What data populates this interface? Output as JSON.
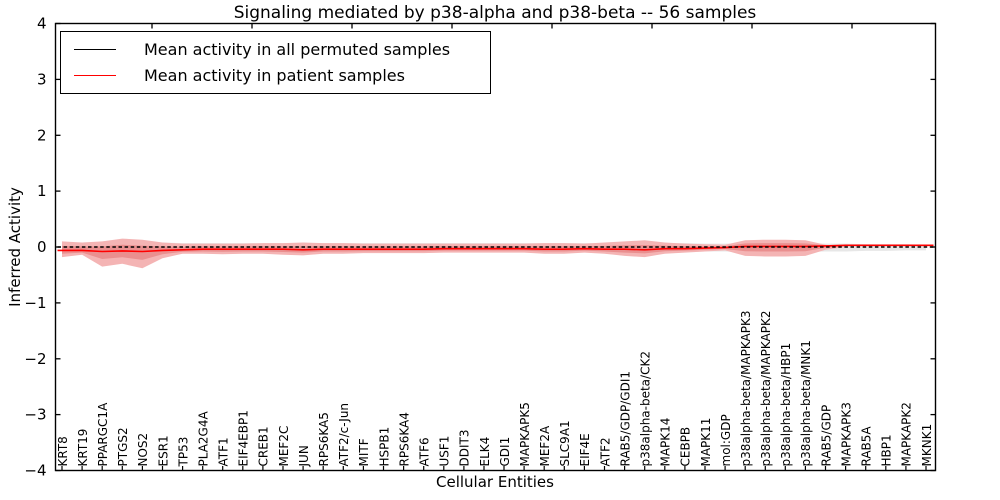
{
  "figure": {
    "background": "#ffffff"
  },
  "legend": {
    "entries": [
      {
        "label": "Mean activity in all permuted samples",
        "color": "#000000"
      },
      {
        "label": "Mean activity in patient samples",
        "color": "#ff0000"
      }
    ]
  },
  "colors": {
    "patient_line": "#ff0000",
    "permuted_line": "#000000",
    "patient_band_outer": "#f4b4b4",
    "patient_band_inner": "#ea8f8f",
    "permuted_band": "#e7e7e7",
    "axis": "#000000"
  },
  "chart_data": {
    "type": "area",
    "title": "Signaling mediated by p38-alpha and p38-beta -- 56 samples",
    "xlabel": "Cellular Entities",
    "ylabel": "Inferred Activity",
    "ylim": [
      -4,
      4
    ],
    "yticks": [
      -4,
      -3,
      -2,
      -1,
      0,
      1,
      2,
      3,
      4
    ],
    "grid": false,
    "legend_position": "upper left",
    "categories": [
      "KRT8",
      "KRT19",
      "PPARGC1A",
      "PTGS2",
      "NOS2",
      "ESR1",
      "TP53",
      "PLA2G4A",
      "ATF1",
      "EIF4EBP1",
      "CREB1",
      "MEF2C",
      "JUN",
      "RPS6KA5",
      "ATF2/c-Jun",
      "MITF",
      "HSPB1",
      "RPS6KA4",
      "ATF6",
      "USF1",
      "DDIT3",
      "ELK4",
      "GDI1",
      "MAPKAPK5",
      "MEF2A",
      "SLC9A1",
      "EIF4E",
      "ATF2",
      "RAB5/GDP/GDI1",
      "p38alpha-beta/CK2",
      "MAPK14",
      "CEBPB",
      "MAPK11",
      "mol:GDP",
      "p38alpha-beta/MAPKAPK3",
      "p38alpha-beta/MAPKAPK2",
      "p38alpha-beta/HBP1",
      "p38alpha-beta/MNK1",
      "RAB5/GDP",
      "MAPKAPK3",
      "RAB5A",
      "HBP1",
      "MAPKAPK2",
      "MKNK1"
    ],
    "series": [
      {
        "name": "Mean activity in all permuted samples",
        "style": "dashed",
        "color": "#000000",
        "values": [
          0,
          0,
          0,
          0,
          0,
          0,
          0,
          0,
          0,
          0,
          0,
          0,
          0,
          0,
          0,
          0,
          0,
          0,
          0,
          0,
          0,
          0,
          0,
          0,
          0,
          0,
          0,
          0,
          0,
          0,
          0,
          0,
          0,
          0,
          0,
          0,
          0,
          0,
          0,
          0,
          0,
          0,
          0,
          0
        ]
      },
      {
        "name": "Mean activity in patient samples",
        "style": "solid",
        "color": "#ff0000",
        "values": [
          -0.06,
          -0.06,
          -0.08,
          -0.07,
          -0.08,
          -0.06,
          -0.05,
          -0.04,
          -0.04,
          -0.04,
          -0.04,
          -0.04,
          -0.05,
          -0.04,
          -0.04,
          -0.04,
          -0.04,
          -0.04,
          -0.04,
          -0.03,
          -0.03,
          -0.03,
          -0.03,
          -0.03,
          -0.04,
          -0.04,
          -0.03,
          -0.04,
          -0.04,
          -0.05,
          -0.03,
          -0.03,
          -0.02,
          -0.01,
          0.01,
          0.01,
          0.01,
          0.01,
          0.02,
          0.03,
          0.03,
          0.03,
          0.03,
          0.03
        ]
      },
      {
        "name": "patient-sample-band",
        "type": "band",
        "color": "#f4b4b4",
        "upper": [
          0.1,
          0.08,
          0.1,
          0.15,
          0.13,
          0.08,
          0.06,
          0.06,
          0.06,
          0.06,
          0.07,
          0.07,
          0.08,
          0.07,
          0.07,
          0.06,
          0.06,
          0.06,
          0.06,
          0.06,
          0.06,
          0.06,
          0.06,
          0.06,
          0.07,
          0.07,
          0.06,
          0.08,
          0.1,
          0.12,
          0.08,
          0.06,
          0.05,
          0.04,
          0.12,
          0.13,
          0.13,
          0.12,
          0.04,
          0,
          0,
          0,
          0,
          0
        ],
        "lower": [
          -0.18,
          -0.14,
          -0.35,
          -0.3,
          -0.38,
          -0.2,
          -0.12,
          -0.12,
          -0.13,
          -0.12,
          -0.12,
          -0.14,
          -0.15,
          -0.12,
          -0.12,
          -0.11,
          -0.11,
          -0.11,
          -0.11,
          -0.1,
          -0.1,
          -0.1,
          -0.1,
          -0.1,
          -0.12,
          -0.12,
          -0.1,
          -0.12,
          -0.16,
          -0.18,
          -0.12,
          -0.1,
          -0.08,
          -0.06,
          -0.16,
          -0.17,
          -0.17,
          -0.16,
          -0.05,
          0,
          0,
          0,
          0,
          0
        ]
      },
      {
        "name": "permuted-sample-band",
        "type": "band",
        "color": "#e7e7e7",
        "upper": [
          0.08,
          0.08,
          0.09,
          0.09,
          0.09,
          0.08,
          0.07,
          0.07,
          0.07,
          0.07,
          0.07,
          0.07,
          0.07,
          0.07,
          0.07,
          0.07,
          0.07,
          0.07,
          0.07,
          0.07,
          0.07,
          0.07,
          0.07,
          0.07,
          0.07,
          0.07,
          0.07,
          0.07,
          0.07,
          0.08,
          0.07,
          0.07,
          0.06,
          0.06,
          0.07,
          0.07,
          0.07,
          0.07,
          0.06,
          0.06,
          0.05,
          0.05,
          0.05,
          0.04
        ],
        "lower": [
          -0.1,
          -0.1,
          -0.11,
          -0.11,
          -0.11,
          -0.1,
          -0.09,
          -0.09,
          -0.09,
          -0.09,
          -0.09,
          -0.09,
          -0.09,
          -0.09,
          -0.09,
          -0.09,
          -0.09,
          -0.09,
          -0.09,
          -0.09,
          -0.09,
          -0.09,
          -0.09,
          -0.09,
          -0.09,
          -0.09,
          -0.09,
          -0.09,
          -0.09,
          -0.1,
          -0.09,
          -0.09,
          -0.08,
          -0.08,
          -0.09,
          -0.09,
          -0.09,
          -0.09,
          -0.08,
          -0.08,
          -0.07,
          -0.07,
          -0.06,
          -0.06
        ]
      }
    ]
  }
}
